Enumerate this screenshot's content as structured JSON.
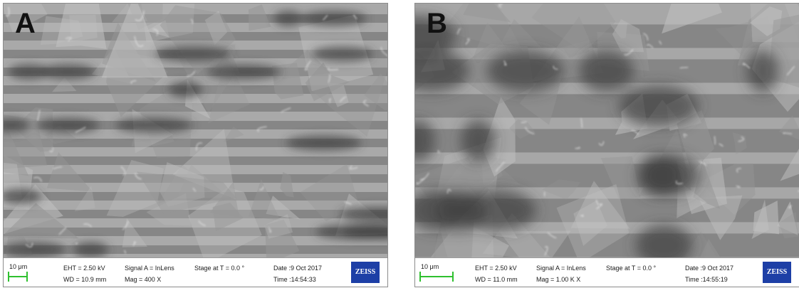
{
  "panels": [
    {
      "letter": "A",
      "scale": "10 μm",
      "eht": "EHT = 2.50 kV",
      "wd": "WD = 10.9 mm",
      "signal": "Signal A = InLens",
      "mag": "Mag =   400 X",
      "stage": "Stage at T =  0.0 °",
      "date": "Date :9 Oct 2017",
      "time": "Time :14:54:33",
      "logo": "ZEISS"
    },
    {
      "letter": "B",
      "scale": "10 μm",
      "eht": "EHT =  2.50 kV",
      "wd": "WD = 11.0 mm",
      "signal": "Signal A = InLens",
      "mag": "Mag =  1.00 K X",
      "stage": "Stage at T =  0.0 °",
      "date": "Date :9 Oct 2017",
      "time": "Time :14:55:19",
      "logo": "ZEISS"
    }
  ]
}
